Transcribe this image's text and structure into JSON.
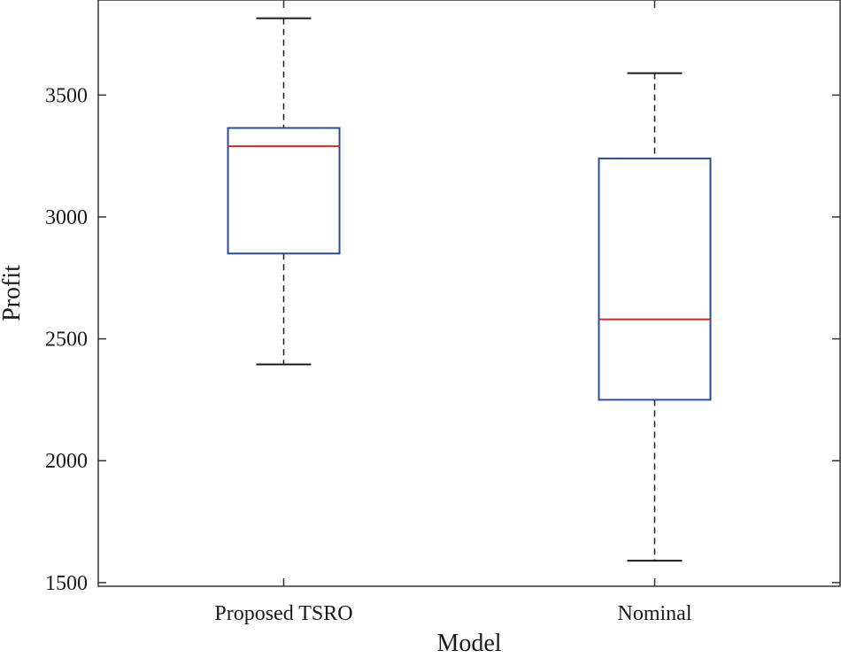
{
  "chart_data": {
    "type": "boxplot",
    "xlabel": "Model",
    "ylabel": "Profit",
    "ylim": [
      1485,
      3890
    ],
    "yticks": [
      1500,
      2000,
      2500,
      3000,
      3500
    ],
    "categories": [
      "Proposed TSRO",
      "Nominal"
    ],
    "boxes": [
      {
        "name": "Proposed TSRO",
        "min": 2395,
        "q1": 2850,
        "median": 3290,
        "q3": 3365,
        "max": 3815
      },
      {
        "name": "Nominal",
        "min": 1590,
        "q1": 2250,
        "median": 2580,
        "q3": 3240,
        "max": 3590
      }
    ],
    "colors": {
      "box": "#2a4a9c",
      "median": "#d62728",
      "whisker": "#1a1a1a",
      "axis": "#333333"
    }
  }
}
